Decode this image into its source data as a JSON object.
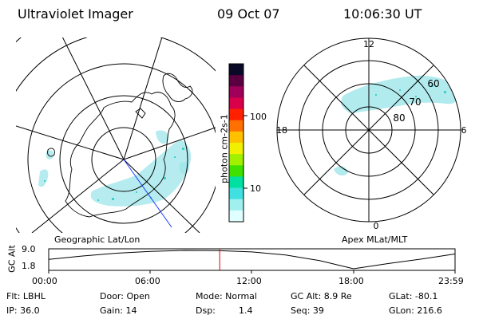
{
  "header": {
    "instrument": "Ultraviolet Imager",
    "date": "09 Oct 07",
    "time": "10:06:30 UT"
  },
  "colorbar": {
    "label": "photon cm-2s-1",
    "tick_labels": [
      "100",
      "10"
    ],
    "colors": [
      "#0a0a28",
      "#5a0040",
      "#a0005a",
      "#d8004a",
      "#ff2000",
      "#ff7000",
      "#ffc000",
      "#f0f000",
      "#a0f000",
      "#40e000",
      "#00e0a0",
      "#40e0e0",
      "#a0f0f0",
      "#e0ffff"
    ]
  },
  "left_map": {
    "caption": "Geographic Lat/Lon"
  },
  "right_map": {
    "caption": "Apex MLat/MLT",
    "mlt_labels": {
      "top": "12",
      "bottom": "0",
      "left": "18",
      "right": "6"
    },
    "mlat_labels": [
      "60",
      "70",
      "80"
    ]
  },
  "timeline": {
    "axis_label": "GC Alt",
    "y_ticks": [
      "9.0",
      "1.8"
    ],
    "x_ticks": [
      "00:00",
      "06:00",
      "12:00",
      "18:00",
      "23:59"
    ],
    "cursor_color": "#e00000"
  },
  "info": {
    "row1": {
      "filter": "Flt: LBHL",
      "door": "Door: Open",
      "mode": "Mode: Normal",
      "gc_alt": "GC Alt: 8.9 Re",
      "glat": "GLat: -80.1"
    },
    "row2": {
      "ip": "IP: 36.0",
      "gain": "Gain: 14",
      "dsp_label": "Dsp:",
      "dsp_value": "1.4",
      "seq": "Seq: 39",
      "glon": "GLon: 216.6"
    }
  },
  "chart_data": [
    {
      "type": "line",
      "title": "",
      "xlabel": "",
      "ylabel": "GC Alt",
      "x": [
        0,
        2,
        4,
        6,
        8,
        10,
        12,
        14,
        16,
        18,
        20,
        22,
        23.98
      ],
      "y": [
        5.5,
        6.8,
        7.9,
        8.6,
        9.0,
        8.9,
        8.4,
        7.2,
        5.0,
        1.8,
        3.8,
        5.6,
        7.6
      ],
      "xlim": [
        0,
        24
      ],
      "ylim": [
        1.8,
        9.0
      ],
      "cursor_x": 10.1
    }
  ]
}
